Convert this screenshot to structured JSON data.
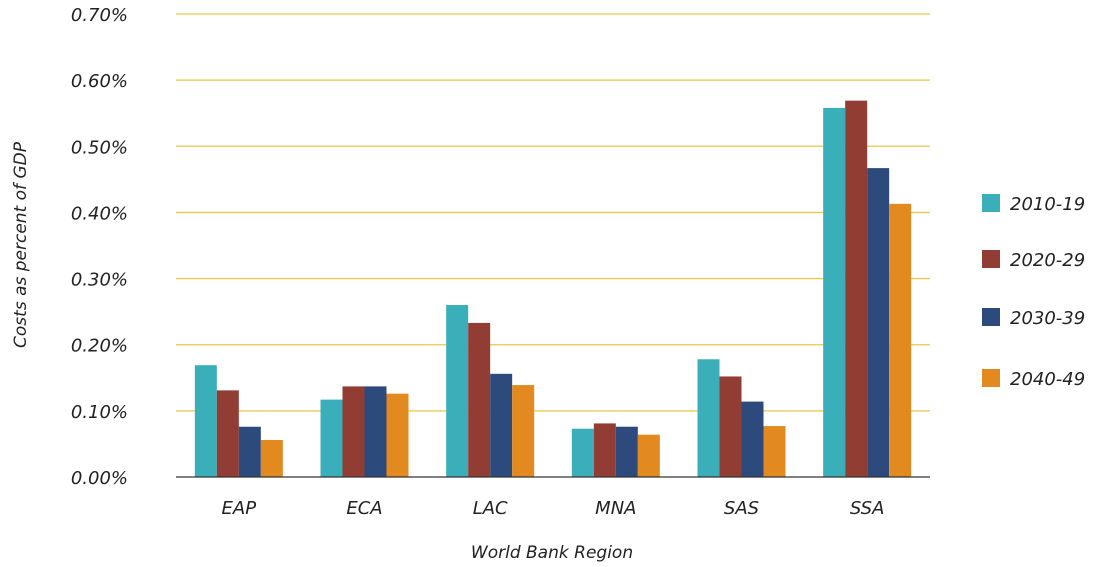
{
  "chart_data": {
    "type": "bar",
    "title": "",
    "xlabel": "World Bank Region",
    "ylabel": "Costs as percent of GDP",
    "categories": [
      "EAP",
      "ECA",
      "LAC",
      "MNA",
      "SAS",
      "SSA"
    ],
    "ylim": [
      0,
      0.7
    ],
    "yticks": [
      0.0,
      0.1,
      0.2,
      0.3,
      0.4,
      0.5,
      0.6,
      0.7
    ],
    "ytick_labels": [
      "0.00%",
      "0.10%",
      "0.20%",
      "0.30%",
      "0.40%",
      "0.50%",
      "0.60%",
      "0.70%"
    ],
    "grid": true,
    "legend_position": "right",
    "series": [
      {
        "name": "2010-19",
        "color": "#3aafb9",
        "values": [
          0.169,
          0.117,
          0.26,
          0.073,
          0.178,
          0.558
        ]
      },
      {
        "name": "2020-29",
        "color": "#923d33",
        "values": [
          0.131,
          0.137,
          0.233,
          0.081,
          0.152,
          0.569
        ]
      },
      {
        "name": "2030-39",
        "color": "#2c4a7c",
        "values": [
          0.076,
          0.137,
          0.156,
          0.076,
          0.114,
          0.467
        ]
      },
      {
        "name": "2040-49",
        "color": "#e28a1f",
        "values": [
          0.056,
          0.126,
          0.139,
          0.064,
          0.077,
          0.413
        ]
      }
    ],
    "colors": {
      "gridline": "#e9c84a",
      "axis": "#333333"
    }
  }
}
